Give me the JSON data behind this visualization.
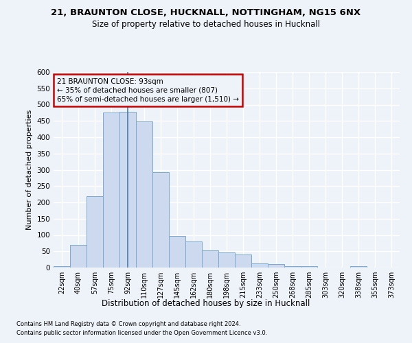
{
  "title1": "21, BRAUNTON CLOSE, HUCKNALL, NOTTINGHAM, NG15 6NX",
  "title2": "Size of property relative to detached houses in Hucknall",
  "xlabel": "Distribution of detached houses by size in Hucknall",
  "ylabel": "Number of detached properties",
  "bar_color": "#ccd9ee",
  "bar_edge_color": "#7aaace",
  "categories": [
    "22sqm",
    "40sqm",
    "57sqm",
    "75sqm",
    "92sqm",
    "110sqm",
    "127sqm",
    "145sqm",
    "162sqm",
    "180sqm",
    "198sqm",
    "215sqm",
    "233sqm",
    "250sqm",
    "268sqm",
    "285sqm",
    "303sqm",
    "320sqm",
    "338sqm",
    "355sqm",
    "373sqm"
  ],
  "values": [
    5,
    70,
    218,
    475,
    478,
    449,
    293,
    97,
    80,
    53,
    46,
    40,
    12,
    11,
    5,
    5,
    0,
    0,
    5,
    0,
    0
  ],
  "ylim_max": 600,
  "yticks": [
    0,
    50,
    100,
    150,
    200,
    250,
    300,
    350,
    400,
    450,
    500,
    550,
    600
  ],
  "property_bin_index": 4,
  "annotation_title": "21 BRAUNTON CLOSE: 93sqm",
  "annotation_line1": "← 35% of detached houses are smaller (807)",
  "annotation_line2": "65% of semi-detached houses are larger (1,510) →",
  "vline_color": "#4a7aaa",
  "annotation_box_facecolor": "#eef3fa",
  "annotation_border_color": "#cc0000",
  "background_color": "#eef3fa",
  "grid_color": "#ffffff",
  "footnote1": "Contains HM Land Registry data © Crown copyright and database right 2024.",
  "footnote2": "Contains public sector information licensed under the Open Government Licence v3.0."
}
